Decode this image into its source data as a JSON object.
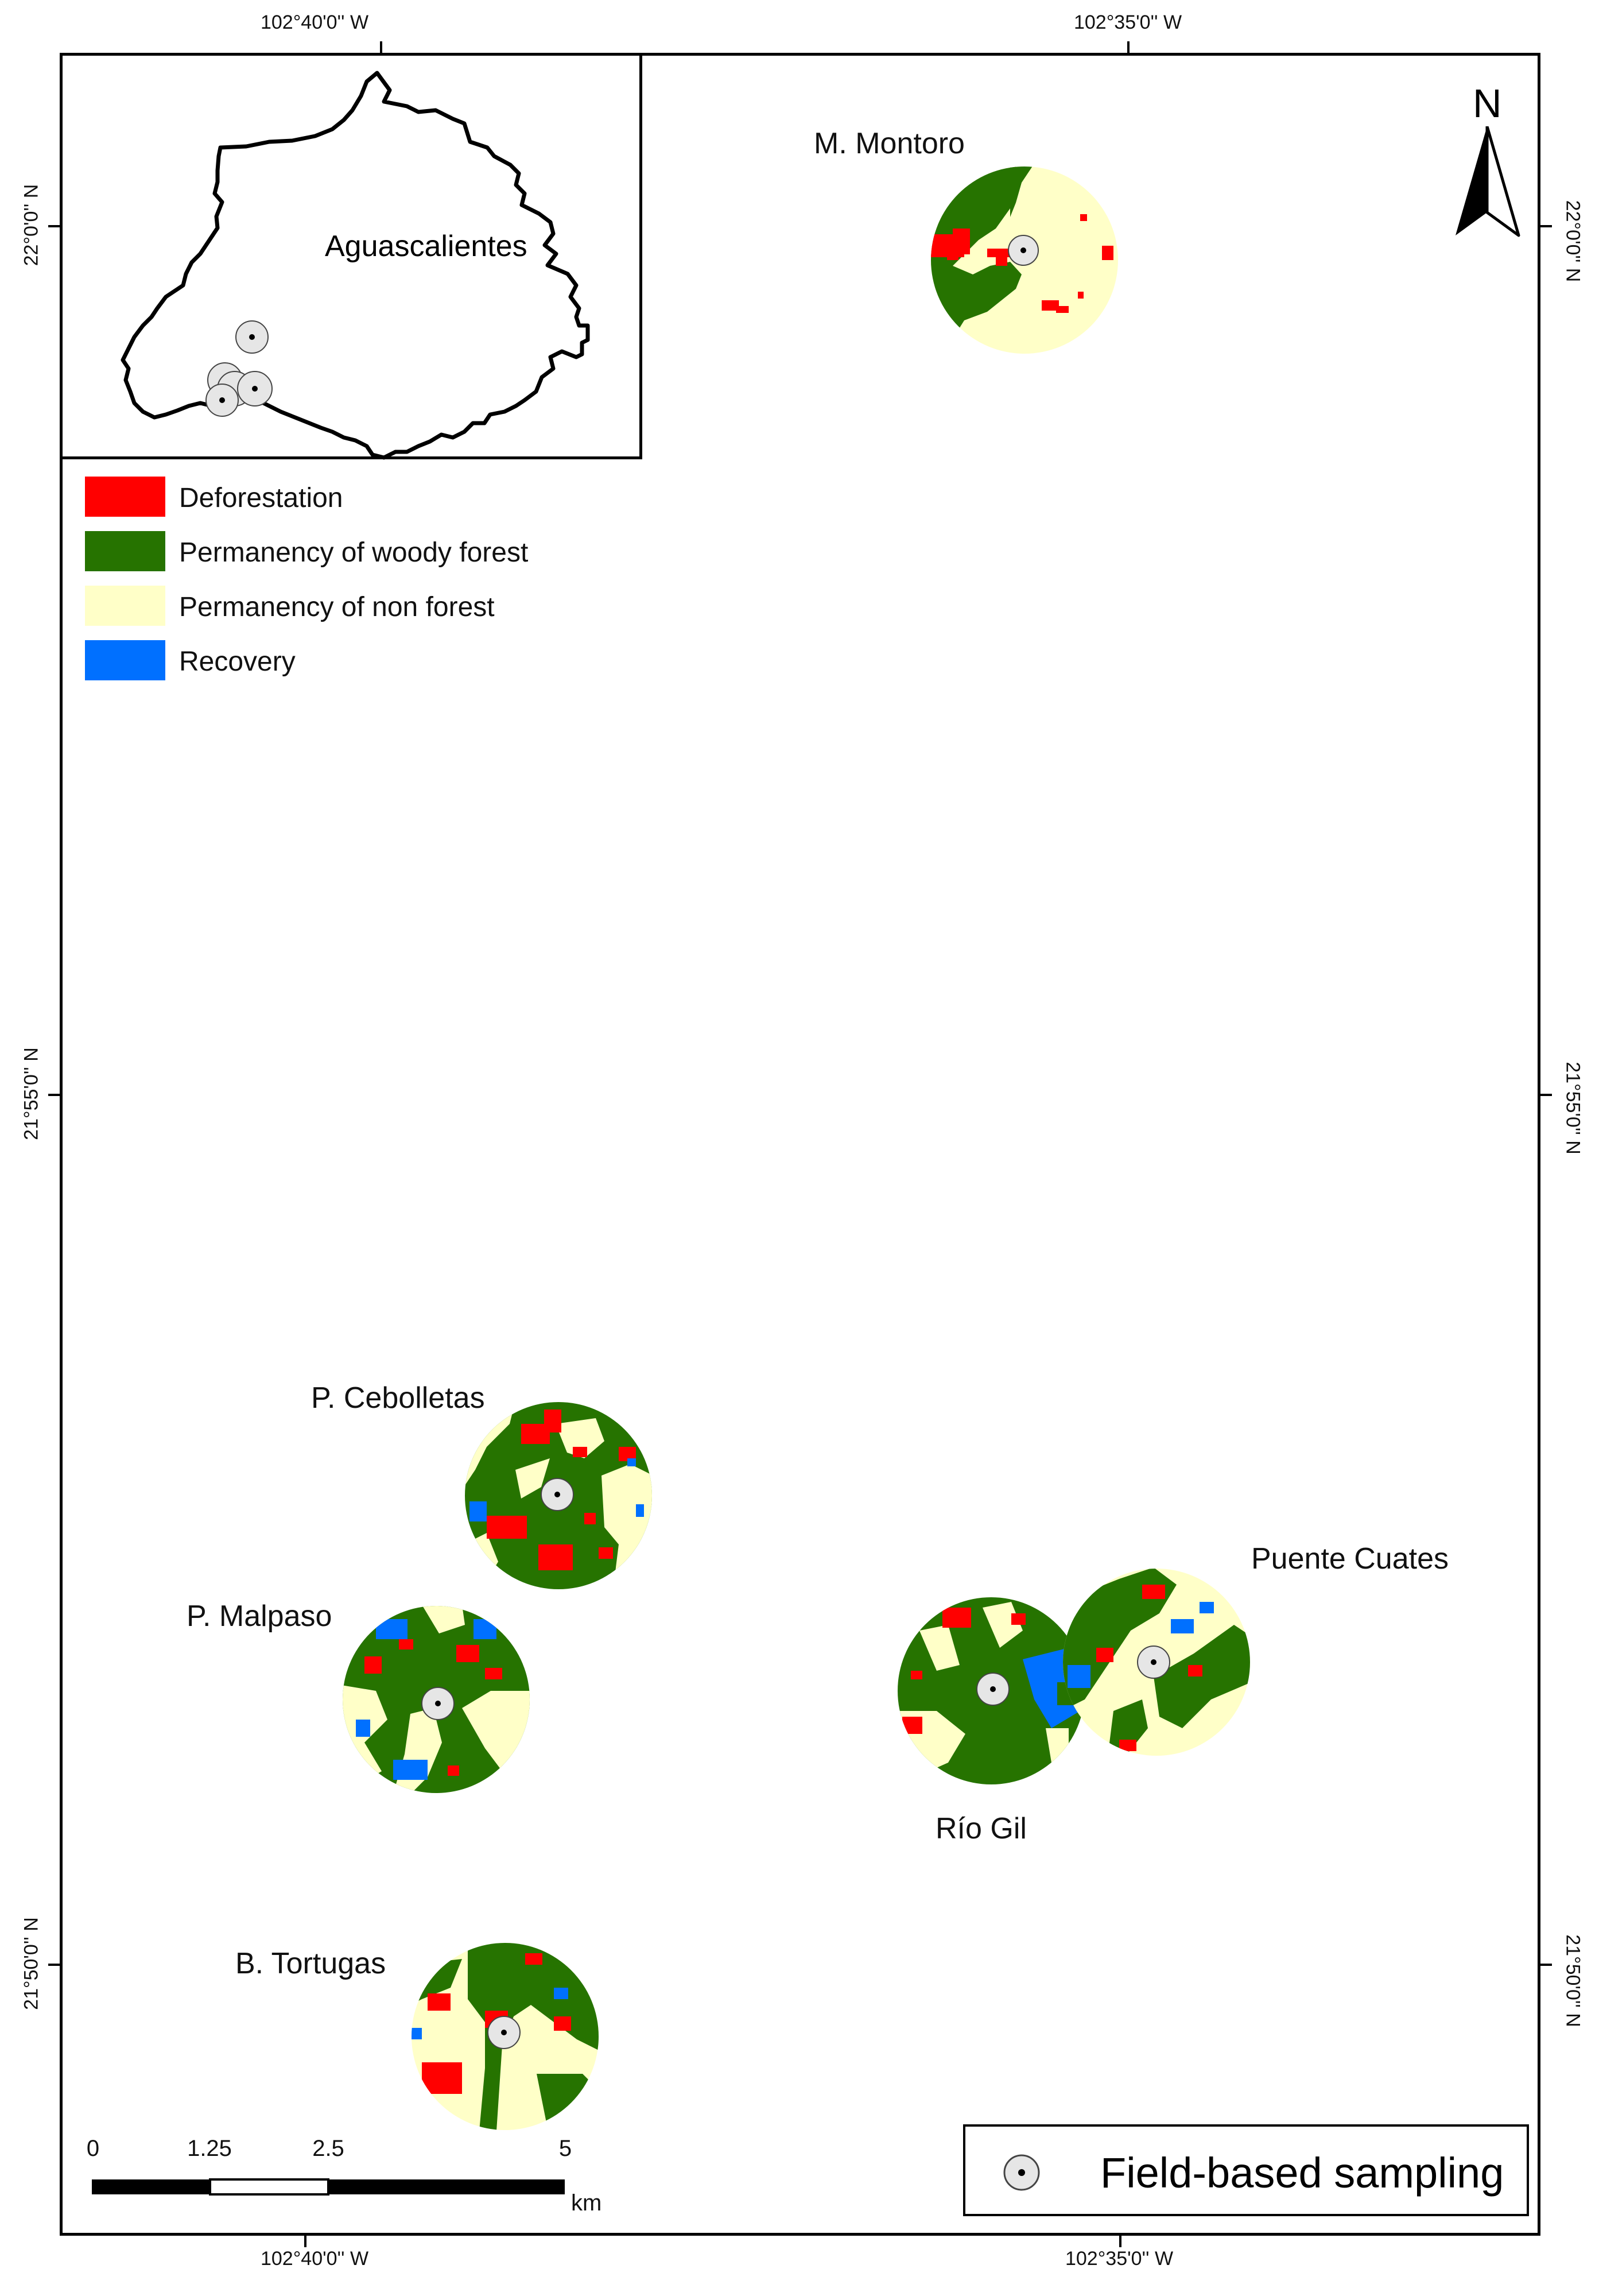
{
  "map": {
    "coords": {
      "lon_left": "102°40'0'' W",
      "lon_right": "102°35'0'' W",
      "lat_top": "22°0'0'' N",
      "lat_mid": "21°55'0'' N",
      "lat_bottom": "21°50'0'' N"
    },
    "north_letter": "N",
    "inset": {
      "label": "Aguascalientes"
    },
    "legend": [
      {
        "label": "Deforestation",
        "color": "#ff0000"
      },
      {
        "label": "Permanency of woody forest",
        "color": "#267300"
      },
      {
        "label": "Permanency of non forest",
        "color": "#ffffc8"
      },
      {
        "label": "Recovery",
        "color": "#0070ff"
      }
    ],
    "sites": [
      {
        "name": "M. Montoro"
      },
      {
        "name": "P. Cebolletas"
      },
      {
        "name": "P. Malpaso"
      },
      {
        "name": "Río Gil"
      },
      {
        "name": "Puente Cuates"
      },
      {
        "name": "B. Tortugas"
      }
    ],
    "scale": {
      "ticks": [
        "0",
        "1.25",
        "2.5",
        "5"
      ],
      "unit": "km"
    },
    "field_label": "Field-based sampling",
    "colors": {
      "deforestation": "#ff0000",
      "woody": "#267300",
      "nonforest": "#ffffc8",
      "recovery": "#0070ff",
      "marker_fill": "#e6e6e6"
    }
  }
}
